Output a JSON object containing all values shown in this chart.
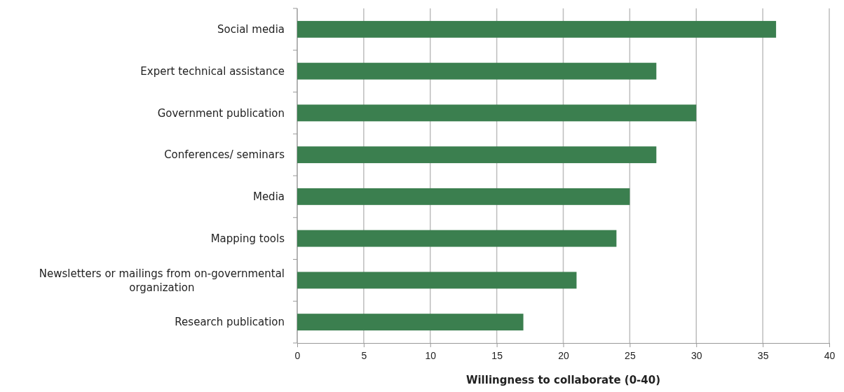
{
  "chart_data": {
    "type": "bar",
    "orientation": "horizontal",
    "xlabel": "Willingness to collaborate (0-40)",
    "categories": [
      "Social media",
      "Expert technical assistance",
      "Government publication",
      "Conferences/ seminars",
      "Media",
      "Mapping tools",
      "Newsletters or mailings from on-governmental organization",
      "Research publication"
    ],
    "values": [
      36,
      27,
      30,
      27,
      25,
      24,
      21,
      17
    ],
    "color": "#3b7f4f",
    "xlim": [
      0,
      40
    ],
    "xticks": [
      0,
      5,
      10,
      15,
      20,
      25,
      30,
      35,
      40
    ],
    "grid": "x"
  }
}
